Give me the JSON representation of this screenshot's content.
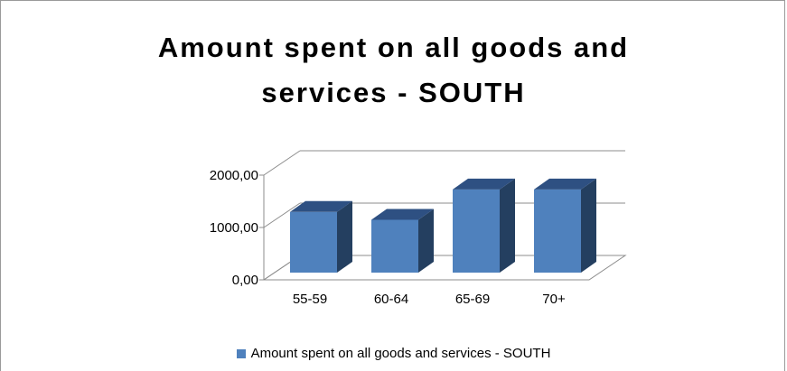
{
  "chart_data": {
    "type": "bar",
    "title_line1": "Amount spent on all goods and",
    "title_line2": "services - SOUTH",
    "categories": [
      "55-59",
      "60-64",
      "65-69",
      "70+"
    ],
    "series": [
      {
        "name": "Amount spent on all goods and services - SOUTH",
        "values": [
          1400,
          1250,
          1830,
          1830
        ]
      }
    ],
    "yticks": [
      "0,00",
      "1000,00",
      "2000,00"
    ],
    "ylim": [
      0,
      2000
    ],
    "grid": true,
    "legend": "bottom",
    "colors": {
      "front": "#4f81bd",
      "side": "#243f60",
      "top": "#2e5082"
    }
  }
}
